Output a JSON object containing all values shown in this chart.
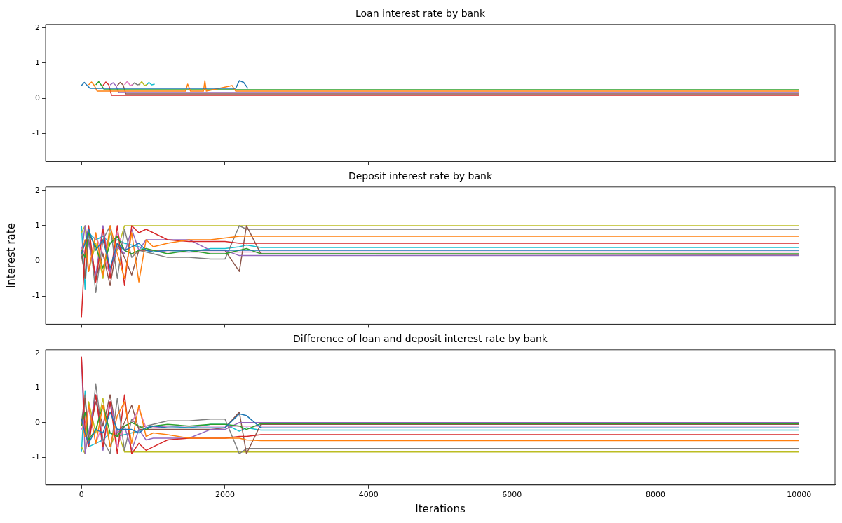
{
  "chart_data": [
    {
      "type": "line",
      "title": "Loan interest rate by bank",
      "tick_labels": "y",
      "grid": false,
      "legend": false,
      "xlim": [
        -500,
        10500
      ],
      "xticks": [
        0,
        2000,
        4000,
        6000,
        8000,
        10000
      ],
      "ylim": [
        -1.8,
        2.1
      ],
      "yticks": [
        -1,
        0,
        1,
        2
      ],
      "series": [
        {
          "color": "#1f77b4",
          "x": [
            0,
            40,
            80,
            120,
            2150,
            2200,
            2260,
            2320
          ],
          "values": [
            0.36,
            0.45,
            0.36,
            0.28,
            0.28,
            0.5,
            0.45,
            0.28
          ]
        },
        {
          "color": "#ff7f0e",
          "x": [
            100,
            140,
            180,
            220,
            1450,
            1480,
            1520,
            1700,
            1720,
            1740,
            2100,
            2150,
            10000
          ],
          "values": [
            0.38,
            0.46,
            0.36,
            0.2,
            0.2,
            0.4,
            0.2,
            0.2,
            0.5,
            0.2,
            0.36,
            0.2,
            0.2
          ]
        },
        {
          "color": "#2ca02c",
          "x": [
            200,
            240,
            280,
            320,
            10000
          ],
          "values": [
            0.38,
            0.47,
            0.36,
            0.24,
            0.24
          ]
        },
        {
          "color": "#d62728",
          "x": [
            300,
            340,
            380,
            420,
            10000
          ],
          "values": [
            0.36,
            0.46,
            0.38,
            0.08,
            0.08
          ]
        },
        {
          "color": "#9467bd",
          "x": [
            400,
            440,
            480,
            520,
            10000
          ],
          "values": [
            0.38,
            0.44,
            0.36,
            0.16,
            0.16
          ]
        },
        {
          "color": "#8c564b",
          "x": [
            500,
            540,
            580,
            620,
            10000
          ],
          "values": [
            0.36,
            0.45,
            0.38,
            0.12,
            0.12
          ]
        },
        {
          "color": "#e377c2",
          "x": [
            600,
            640,
            680,
            720
          ],
          "values": [
            0.38,
            0.48,
            0.36,
            0.4
          ]
        },
        {
          "color": "#7f7f7f",
          "x": [
            700,
            740,
            780,
            820
          ],
          "values": [
            0.36,
            0.44,
            0.38,
            0.4
          ]
        },
        {
          "color": "#bcbd22",
          "x": [
            800,
            840,
            880,
            920
          ],
          "values": [
            0.38,
            0.47,
            0.36,
            0.4
          ]
        },
        {
          "color": "#17becf",
          "x": [
            900,
            940,
            980,
            1020
          ],
          "values": [
            0.36,
            0.45,
            0.38,
            0.4
          ]
        }
      ]
    },
    {
      "type": "line",
      "title": "Deposit interest rate by bank",
      "ylabel": "Interest rate",
      "tick_labels": "y",
      "grid": false,
      "legend": false,
      "x": [
        0,
        50,
        100,
        200,
        300,
        400,
        500,
        600,
        700,
        800,
        900,
        1000,
        1200,
        1500,
        1800,
        2000,
        2200,
        2300,
        2500,
        10000
      ],
      "xlim": [
        -500,
        10500
      ],
      "xticks": [
        0,
        2000,
        4000,
        6000,
        8000,
        10000
      ],
      "ylim": [
        -1.8,
        2.1
      ],
      "yticks": [
        -1,
        0,
        1,
        2
      ],
      "series": [
        {
          "color": "#1f77b4",
          "values": [
            0.2,
            0.5,
            0.9,
            0.3,
            0.6,
            -0.2,
            0.5,
            0.3,
            0.4,
            0.5,
            0.3,
            0.25,
            0.3,
            0.3,
            0.3,
            0.3,
            0.3,
            0.3,
            0.3,
            0.3
          ]
        },
        {
          "color": "#ff7f0e",
          "values": [
            0.2,
            0.6,
            -0.3,
            0.8,
            -0.4,
            1.0,
            0.2,
            -0.5,
            0.8,
            -0.6,
            0.6,
            0.4,
            0.5,
            0.6,
            0.6,
            0.65,
            0.7,
            0.7,
            0.7,
            0.7
          ]
        },
        {
          "color": "#2ca02c",
          "values": [
            0.3,
            0.1,
            0.8,
            0.4,
            -0.2,
            0.5,
            0.7,
            0.3,
            0.2,
            0.3,
            0.35,
            0.3,
            0.2,
            0.3,
            0.2,
            0.2,
            0.3,
            0.35,
            0.2,
            0.2
          ]
        },
        {
          "color": "#d62728",
          "values": [
            -1.6,
            0.3,
            1.0,
            -0.6,
            0.9,
            -0.5,
            1.0,
            -0.7,
            1.0,
            0.8,
            0.9,
            0.8,
            0.6,
            0.55,
            0.55,
            0.55,
            0.5,
            0.5,
            0.5,
            0.5
          ]
        },
        {
          "color": "#9467bd",
          "values": [
            0.2,
            1.0,
            0.5,
            -0.4,
            1.0,
            -0.3,
            0.4,
            0.2,
            0.9,
            0.3,
            0.6,
            0.6,
            0.6,
            0.6,
            0.3,
            0.3,
            0.15,
            0.15,
            0.15,
            0.15
          ]
        },
        {
          "color": "#8c564b",
          "values": [
            0.3,
            -0.5,
            0.6,
            -0.5,
            0.2,
            -0.7,
            0.5,
            0.1,
            -0.4,
            0.3,
            0.3,
            0.3,
            0.3,
            0.3,
            0.3,
            0.3,
            -0.3,
            1.0,
            0.2,
            0.18
          ]
        },
        {
          "color": "#e377c2",
          "values": [
            0.4,
            0.2,
            -0.3,
            0.7,
            0.2,
            -0.4,
            0.8,
            0.3,
            0.2,
            0.3,
            0.3,
            0.3,
            0.25,
            0.25,
            0.25,
            0.25,
            0.25,
            0.25,
            0.25,
            0.25
          ]
        },
        {
          "color": "#7f7f7f",
          "values": [
            0.15,
            -0.4,
            0.9,
            -0.9,
            0.6,
            1.0,
            -0.5,
            0.9,
            0.1,
            0.3,
            0.25,
            0.2,
            0.1,
            0.1,
            0.05,
            0.05,
            1.0,
            0.9,
            0.9,
            0.9
          ]
        },
        {
          "color": "#bcbd22",
          "values": [
            0.8,
            1.0,
            -0.3,
            0.5,
            -0.5,
            0.8,
            0.3,
            1.0,
            1.0,
            1.0,
            1.0,
            1.0,
            1.0,
            1.0,
            1.0,
            1.0,
            1.0,
            1.0,
            1.0,
            1.0
          ]
        },
        {
          "color": "#17becf",
          "values": [
            1.0,
            -0.8,
            0.8,
            0.6,
            0.7,
            0.5,
            0.6,
            0.5,
            0.45,
            0.4,
            0.3,
            0.25,
            0.3,
            0.25,
            0.35,
            0.35,
            0.4,
            0.45,
            0.38,
            0.38
          ]
        }
      ]
    },
    {
      "type": "line",
      "title": "Difference of loan and deposit interest rate by bank",
      "xlabel": "Iterations",
      "grid": false,
      "legend": false,
      "x": [
        0,
        50,
        100,
        200,
        300,
        400,
        500,
        600,
        700,
        800,
        900,
        1000,
        1200,
        1500,
        1800,
        2000,
        2200,
        2300,
        2500,
        10000
      ],
      "xlim": [
        -500,
        10500
      ],
      "xticks": [
        0,
        2000,
        4000,
        6000,
        8000,
        10000
      ],
      "ylim": [
        -1.8,
        2.1
      ],
      "yticks": [
        -1,
        0,
        1,
        2
      ],
      "series": [
        {
          "color": "#1f77b4",
          "values": [
            0.1,
            -0.3,
            -0.6,
            -0.2,
            -0.3,
            0.3,
            -0.2,
            -0.2,
            -0.2,
            -0.3,
            -0.15,
            -0.1,
            -0.15,
            -0.15,
            -0.15,
            -0.15,
            0.25,
            0.2,
            -0.15,
            -0.15
          ]
        },
        {
          "color": "#ff7f0e",
          "values": [
            0.1,
            -0.4,
            0.5,
            -0.6,
            0.5,
            -0.7,
            0.2,
            0.6,
            -0.6,
            0.5,
            -0.4,
            -0.3,
            -0.35,
            -0.45,
            -0.45,
            -0.45,
            -0.45,
            -0.5,
            -0.52,
            -0.52
          ]
        },
        {
          "color": "#2ca02c",
          "values": [
            -0.1,
            0.3,
            -0.5,
            -0.2,
            0.5,
            -0.3,
            -0.4,
            -0.1,
            0,
            -0.1,
            -0.2,
            -0.1,
            -0.05,
            -0.1,
            -0.05,
            -0.05,
            -0.1,
            -0.2,
            -0.03,
            -0.03
          ]
        },
        {
          "color": "#d62728",
          "values": [
            1.9,
            -0.2,
            -0.7,
            0.8,
            -0.7,
            0.6,
            -0.9,
            0.8,
            -0.9,
            -0.6,
            -0.8,
            -0.7,
            -0.5,
            -0.45,
            -0.45,
            -0.45,
            -0.4,
            -0.4,
            -0.35,
            -0.35
          ]
        },
        {
          "color": "#9467bd",
          "values": [
            1.9,
            -0.9,
            -0.3,
            0.8,
            -0.8,
            0.6,
            -0.3,
            -0.1,
            -0.8,
            -0.2,
            -0.5,
            -0.45,
            -0.45,
            -0.45,
            -0.2,
            -0.2,
            0,
            0,
            0,
            0
          ]
        },
        {
          "color": "#8c564b",
          "values": [
            -0.1,
            0.7,
            -0.4,
            0.6,
            -0.1,
            0.8,
            -0.4,
            0,
            0.5,
            -0.2,
            -0.2,
            -0.2,
            -0.2,
            -0.2,
            -0.2,
            -0.15,
            0.3,
            -0.9,
            -0.05,
            -0.05
          ]
        },
        {
          "color": "#e377c2",
          "values": [
            -0.2,
            0,
            0.4,
            -0.6,
            0,
            0.6,
            -0.7,
            -0.1,
            0,
            0.4,
            -0.15,
            -0.15,
            -0.1,
            -0.1,
            -0.1,
            -0.1,
            -0.1,
            -0.1,
            -0.1,
            -0.1
          ]
        },
        {
          "color": "#7f7f7f",
          "values": [
            0,
            0.8,
            -0.7,
            1.1,
            -0.5,
            -0.9,
            0.7,
            -0.8,
            0.1,
            -0.15,
            -0.1,
            -0.05,
            0.05,
            0.05,
            0.1,
            0.1,
            -0.9,
            -0.75,
            -0.75,
            -0.75
          ]
        },
        {
          "color": "#bcbd22",
          "values": [
            -0.7,
            -0.9,
            0.6,
            -0.3,
            0.7,
            -0.7,
            -0.2,
            -0.85,
            -0.85,
            -0.85,
            -0.85,
            -0.85,
            -0.85,
            -0.85,
            -0.85,
            -0.85,
            -0.85,
            -0.85,
            -0.85,
            -0.85
          ]
        },
        {
          "color": "#17becf",
          "values": [
            -0.85,
            0.9,
            -0.7,
            -0.6,
            -0.5,
            -0.3,
            -0.4,
            -0.35,
            -0.3,
            -0.25,
            -0.15,
            -0.1,
            -0.1,
            -0.15,
            -0.05,
            -0.05,
            -0.25,
            -0.15,
            -0.22,
            -0.22
          ]
        }
      ]
    }
  ]
}
